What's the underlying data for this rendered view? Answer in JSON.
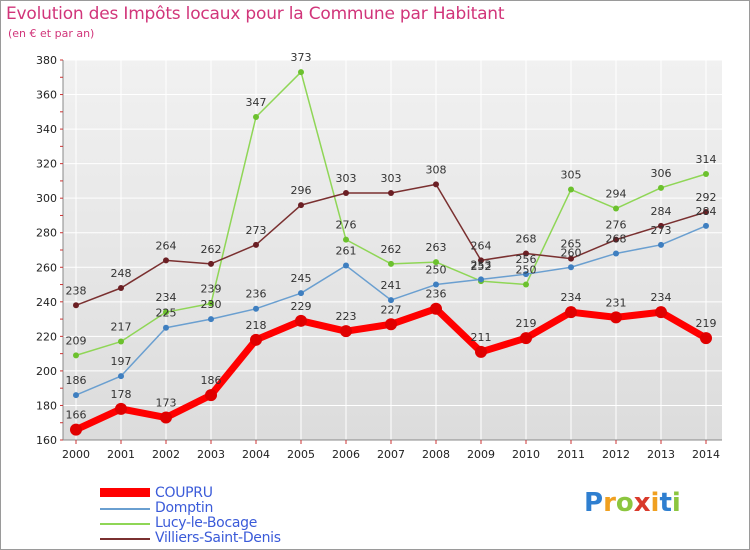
{
  "title": "Evolution des Impôts locaux pour la Commune par Habitant",
  "subtitle": "(en € et par an)",
  "logo": {
    "letters": [
      "P",
      "r",
      "o",
      "x",
      "i",
      "t",
      "i"
    ],
    "colors": [
      "#2f7fd0",
      "#f0a020",
      "#8cc63f",
      "#d93a2b",
      "#f0a020",
      "#2f7fd0",
      "#8cc63f"
    ]
  },
  "chart_data": {
    "type": "line",
    "title": "Evolution des Impôts locaux pour la Commune par Habitant",
    "ylabel": "(en € et par an)",
    "x": [
      "2000",
      "2001",
      "2002",
      "2003",
      "2004",
      "2005",
      "2006",
      "2007",
      "2008",
      "2009",
      "2010",
      "2011",
      "2012",
      "2013",
      "2014"
    ],
    "ylim": [
      160,
      380
    ],
    "yticks": [
      160,
      180,
      200,
      220,
      240,
      260,
      280,
      300,
      320,
      340,
      360,
      380
    ],
    "grid": true,
    "legend": "bottom-left",
    "series": [
      {
        "name": "Lucy-le-Bocage",
        "color": "#8fd656",
        "marker": "#6cc12e",
        "width": 1.5,
        "values": [
          209,
          217,
          234,
          239,
          347,
          373,
          276,
          262,
          263,
          252,
          250,
          305,
          294,
          306,
          314
        ],
        "labels": [
          "209",
          "217",
          "234",
          "239",
          "347",
          "373",
          "276",
          "262",
          "263",
          "252",
          "250",
          "305",
          "294",
          "306",
          "314"
        ]
      },
      {
        "name": "Domptin",
        "color": "#6a9fd0",
        "marker": "#3f7fc0",
        "width": 1.5,
        "values": [
          186,
          197,
          225,
          230,
          236,
          245,
          261,
          241,
          250,
          253,
          256,
          260,
          268,
          273,
          284
        ],
        "labels": [
          "186",
          "197",
          "225",
          "230",
          "236",
          "245",
          "261",
          "241",
          "250",
          "253",
          "256",
          "260",
          "268",
          "273",
          "284"
        ]
      },
      {
        "name": "Villiers-Saint-Denis",
        "color": "#7a3030",
        "marker": "#6b1f24",
        "width": 1.5,
        "values": [
          238,
          248,
          264,
          262,
          273,
          296,
          303,
          303,
          308,
          264,
          268,
          265,
          276,
          284,
          292
        ],
        "labels": [
          "238",
          "248",
          "264",
          "262",
          "273",
          "296",
          "303",
          "303",
          "308",
          "264",
          "268",
          "265",
          "276",
          "284",
          "292"
        ]
      },
      {
        "name": "COUPRU",
        "color": "#ff0000",
        "marker": "#e00000",
        "width": 7,
        "values": [
          166,
          178,
          173,
          186,
          218,
          229,
          223,
          227,
          236,
          211,
          219,
          234,
          231,
          234,
          219
        ],
        "labels": [
          "166",
          "178",
          "173",
          "186",
          "218",
          "229",
          "223",
          "227",
          "236",
          "211",
          "219",
          "234",
          "231",
          "234",
          "219"
        ]
      }
    ]
  },
  "legend": {
    "items": [
      {
        "label": "COUPRU",
        "color": "#ff0000"
      },
      {
        "label": "Domptin",
        "color": "#6a9fd0"
      },
      {
        "label": "Lucy-le-Bocage",
        "color": "#8fd656"
      },
      {
        "label": "Villiers-Saint-Denis",
        "color": "#7a3030"
      }
    ]
  }
}
